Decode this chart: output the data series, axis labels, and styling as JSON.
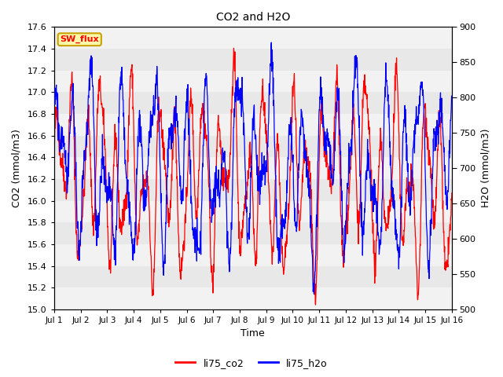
{
  "title": "CO2 and H2O",
  "xlabel": "Time",
  "ylabel_left": "CO2 (mmol/m3)",
  "ylabel_right": "H2O (mmol/m3)",
  "ylim_left": [
    15.0,
    17.6
  ],
  "ylim_right": [
    500,
    900
  ],
  "co2_color": "red",
  "h2o_color": "blue",
  "legend_labels": [
    "li75_co2",
    "li75_h2o"
  ],
  "sw_flux_label": "SW_flux",
  "sw_flux_bg": "#fffaaa",
  "sw_flux_border": "#c8a000",
  "plot_bg": "#e8e8e8",
  "band_color": "#f2f2f2",
  "xtick_labels": [
    "Jul 1",
    "Jul 2",
    "Jul 3",
    "Jul 4",
    "Jul 5",
    "Jul 6",
    "Jul 7",
    "Jul 8",
    "Jul 9",
    "Jul 10",
    "Jul 11",
    "Jul 12",
    "Jul 13",
    "Jul 14",
    "Jul 15",
    "Jul 16"
  ],
  "yticks_left": [
    15.0,
    15.2,
    15.4,
    15.6,
    15.8,
    16.0,
    16.2,
    16.4,
    16.6,
    16.8,
    17.0,
    17.2,
    17.4,
    17.6
  ],
  "yticks_right": [
    500,
    550,
    600,
    650,
    700,
    750,
    800,
    850,
    900
  ],
  "figsize": [
    6.4,
    4.8
  ],
  "dpi": 100
}
